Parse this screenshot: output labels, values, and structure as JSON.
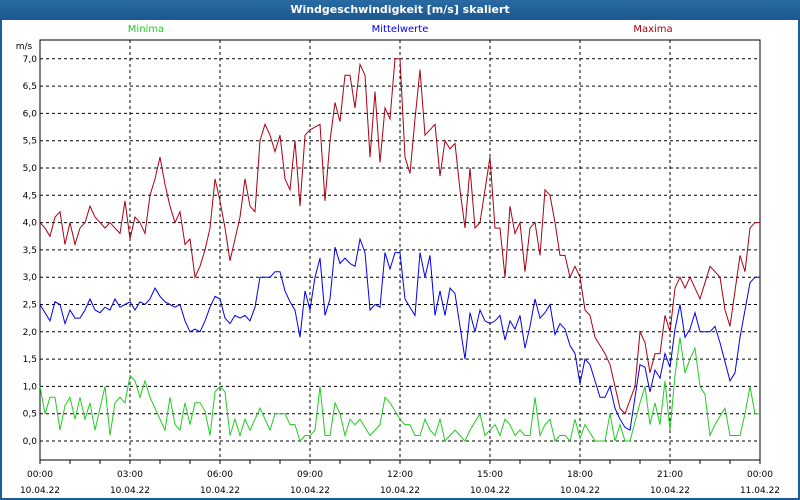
{
  "window": {
    "title": "Windgeschwindigkeit [m/s] skaliert"
  },
  "legend": [
    {
      "label": "Minima",
      "color": "#22cc22"
    },
    {
      "label": "Mittelwerte",
      "color": "#0000ee"
    },
    {
      "label": "Maxima",
      "color": "#aa0011"
    }
  ],
  "chart_data": {
    "type": "line",
    "title": "Windgeschwindigkeit [m/s] skaliert",
    "ylabel": "m/s",
    "xlabel": "",
    "ylim": [
      -0.35,
      7.35
    ],
    "y_ticks": [
      "0,0",
      "0,5",
      "1,0",
      "1,5",
      "2,0",
      "2,5",
      "3,0",
      "3,5",
      "4,0",
      "4,5",
      "5,0",
      "5,5",
      "6,0",
      "6,5",
      "7,0"
    ],
    "x_range_hours": [
      0,
      24
    ],
    "x_interval_minutes": 10,
    "x_ticks": [
      {
        "time": "00:00",
        "date": "10.04.22"
      },
      {
        "time": "03:00",
        "date": "10.04.22"
      },
      {
        "time": "06:00",
        "date": "10.04.22"
      },
      {
        "time": "09:00",
        "date": "10.04.22"
      },
      {
        "time": "12:00",
        "date": "10.04.22"
      },
      {
        "time": "15:00",
        "date": "10.04.22"
      },
      {
        "time": "18:00",
        "date": "10.04.22"
      },
      {
        "time": "21:00",
        "date": "10.04.22"
      },
      {
        "time": "00:00",
        "date": "11.04.22"
      }
    ],
    "grid": true,
    "legend_position": "top",
    "series": [
      {
        "name": "Minima",
        "color": "#22cc22",
        "values": [
          1.0,
          0.5,
          0.8,
          0.8,
          0.2,
          0.65,
          0.8,
          0.4,
          0.8,
          0.4,
          0.7,
          0.2,
          0.6,
          1.0,
          0.1,
          0.7,
          0.8,
          0.7,
          1.2,
          1.1,
          0.8,
          1.1,
          0.8,
          0.6,
          0.4,
          0.2,
          0.8,
          0.3,
          0.2,
          0.7,
          0.3,
          0.7,
          0.7,
          0.55,
          0.1,
          0.9,
          1.0,
          0.9,
          0.1,
          0.4,
          0.1,
          0.4,
          0.2,
          0.4,
          0.6,
          0.4,
          0.2,
          0.5,
          0.5,
          0.5,
          0.3,
          0.3,
          0.0,
          0.1,
          0.1,
          0.2,
          1.0,
          0.1,
          0.1,
          0.7,
          0.5,
          0.1,
          0.4,
          0.3,
          0.4,
          0.25,
          0.1,
          0.2,
          0.3,
          0.8,
          0.7,
          0.55,
          0.4,
          0.3,
          0.3,
          0.1,
          0.1,
          0.4,
          0.2,
          0.1,
          0.4,
          0.0,
          0.1,
          0.2,
          0.1,
          0.0,
          0.2,
          0.35,
          0.5,
          0.1,
          0.2,
          0.3,
          0.1,
          0.4,
          0.3,
          0.1,
          0.2,
          0.1,
          0.1,
          0.8,
          0.1,
          0.3,
          0.4,
          0.0,
          0.1,
          0.1,
          0.0,
          0.4,
          0.05,
          0.3,
          0.15,
          0.0,
          0.0,
          0.0,
          0.5,
          0.0,
          0.3,
          0.0,
          0.0,
          0.35,
          0.7,
          1.0,
          0.3,
          0.7,
          0.3,
          1.1,
          0.2,
          1.2,
          1.9,
          1.25,
          1.5,
          1.7,
          1.0,
          0.85,
          0.1,
          0.3,
          0.45,
          0.6,
          0.1,
          0.1,
          0.1,
          0.5,
          1.0,
          0.5,
          0.5
        ]
      },
      {
        "name": "Mittelwerte",
        "color": "#0000ee",
        "values": [
          2.5,
          2.35,
          2.2,
          2.55,
          2.5,
          2.15,
          2.4,
          2.25,
          2.25,
          2.4,
          2.6,
          2.4,
          2.35,
          2.45,
          2.4,
          2.6,
          2.45,
          2.5,
          2.55,
          2.4,
          2.55,
          2.5,
          2.6,
          2.8,
          2.65,
          2.55,
          2.5,
          2.45,
          2.5,
          2.2,
          2.0,
          2.05,
          2.0,
          2.2,
          2.45,
          2.65,
          2.6,
          2.25,
          2.15,
          2.3,
          2.25,
          2.3,
          2.2,
          2.45,
          3.0,
          3.0,
          3.0,
          3.1,
          3.1,
          2.75,
          2.55,
          2.4,
          1.9,
          2.75,
          2.4,
          3.0,
          3.35,
          2.3,
          2.6,
          3.55,
          3.25,
          3.35,
          3.25,
          3.2,
          3.7,
          3.45,
          2.4,
          2.5,
          2.45,
          3.45,
          3.15,
          3.45,
          3.45,
          2.6,
          2.45,
          2.3,
          3.45,
          3.0,
          3.4,
          2.3,
          2.75,
          2.3,
          2.8,
          2.7,
          2.1,
          1.5,
          2.35,
          2.0,
          2.4,
          2.2,
          2.15,
          2.2,
          2.3,
          1.85,
          2.2,
          2.05,
          2.3,
          1.7,
          2.1,
          2.6,
          2.25,
          2.35,
          2.5,
          1.95,
          2.15,
          2.05,
          1.75,
          1.6,
          1.05,
          1.5,
          1.4,
          1.1,
          0.8,
          0.8,
          1.0,
          0.6,
          0.4,
          0.25,
          0.2,
          0.8,
          1.4,
          1.35,
          0.9,
          1.3,
          1.15,
          1.6,
          1.35,
          2.05,
          2.5,
          1.9,
          2.05,
          2.35,
          2.0,
          2.0,
          2.0,
          2.1,
          1.8,
          1.45,
          1.1,
          1.25,
          1.9,
          2.4,
          2.9,
          3.0,
          3.0
        ]
      },
      {
        "name": "Maxima",
        "color": "#aa0011",
        "values": [
          4.0,
          3.9,
          3.75,
          4.1,
          4.2,
          3.6,
          4.0,
          3.6,
          3.9,
          4.0,
          4.3,
          4.1,
          4.0,
          3.9,
          4.0,
          3.9,
          3.8,
          4.4,
          3.7,
          4.1,
          4.0,
          3.8,
          4.5,
          4.8,
          5.2,
          4.7,
          4.3,
          4.0,
          4.2,
          3.6,
          3.7,
          3.0,
          3.2,
          3.5,
          3.9,
          4.8,
          4.4,
          3.9,
          3.3,
          3.7,
          4.1,
          4.8,
          4.3,
          4.2,
          5.5,
          5.8,
          5.6,
          5.3,
          5.6,
          4.8,
          4.6,
          5.5,
          4.3,
          5.6,
          5.7,
          5.75,
          5.8,
          4.4,
          5.5,
          6.2,
          5.85,
          6.7,
          6.7,
          6.1,
          6.9,
          6.7,
          5.2,
          6.4,
          5.1,
          6.1,
          5.9,
          7.0,
          7.0,
          5.2,
          4.9,
          5.9,
          6.8,
          5.6,
          5.7,
          5.8,
          4.85,
          5.5,
          5.35,
          5.45,
          4.6,
          3.9,
          5.0,
          3.9,
          4.0,
          4.6,
          5.2,
          3.9,
          3.9,
          3.0,
          4.3,
          3.8,
          4.0,
          3.1,
          3.9,
          4.0,
          3.4,
          4.6,
          4.5,
          4.0,
          3.4,
          3.4,
          3.0,
          3.2,
          3.0,
          2.4,
          2.3,
          1.9,
          1.75,
          1.6,
          1.4,
          1.0,
          0.6,
          0.5,
          0.75,
          1.0,
          2.0,
          1.8,
          1.25,
          1.6,
          1.6,
          2.3,
          2.0,
          2.8,
          3.0,
          2.8,
          3.0,
          2.8,
          2.6,
          2.9,
          3.2,
          3.1,
          3.0,
          2.4,
          2.1,
          2.75,
          3.4,
          3.1,
          3.9,
          4.0,
          4.0
        ]
      }
    ]
  }
}
